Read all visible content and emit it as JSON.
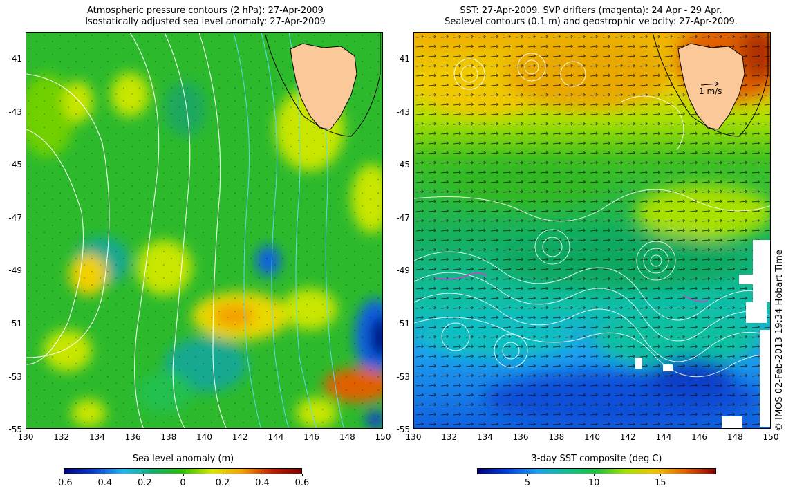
{
  "left_panel": {
    "title_line1": "Atmospheric pressure contours (2 hPa): 27-Apr-2009",
    "title_line2": "Isostatically adjusted sea level anomaly: 27-Apr-2009",
    "colorbar_label": "Sea level anomaly (m)",
    "colorbar_ticks": [
      "-0.6",
      "-0.4",
      "-0.2",
      "0",
      "0.2",
      "0.4",
      "0.6"
    ]
  },
  "right_panel": {
    "title_line1": "SST: 27-Apr-2009. SVP drifters (magenta): 24 Apr - 29 Apr.",
    "title_line2": "Sealevel contours (0.1 m) and geostrophic velocity: 27-Apr-2009.",
    "scale_label": "1 m/s",
    "colorbar_label": "3-day SST composite (deg C)",
    "colorbar_ticks": [
      "5",
      "10",
      "15"
    ]
  },
  "axes": {
    "lat_ticks": [
      "-41",
      "-43",
      "-45",
      "-47",
      "-49",
      "-51",
      "-53",
      "-55"
    ],
    "lon_ticks": [
      "130",
      "132",
      "134",
      "136",
      "138",
      "140",
      "142",
      "144",
      "146",
      "148",
      "150"
    ]
  },
  "credit": "© IMOS 02-Feb-2013 19:34 Hobart Time",
  "colors": {
    "land": "#fbc89a",
    "sla_ramp": [
      "#00007f",
      "#0a3fd0",
      "#22b8f0",
      "#16b070",
      "#2ec000",
      "#d8e800",
      "#f5a000",
      "#c02000",
      "#7f0000"
    ],
    "sst_ramp": [
      "#00007f",
      "#0040e0",
      "#1ea0f0",
      "#10c090",
      "#20c040",
      "#a8e000",
      "#f0c000",
      "#e06000",
      "#8b0000"
    ]
  }
}
